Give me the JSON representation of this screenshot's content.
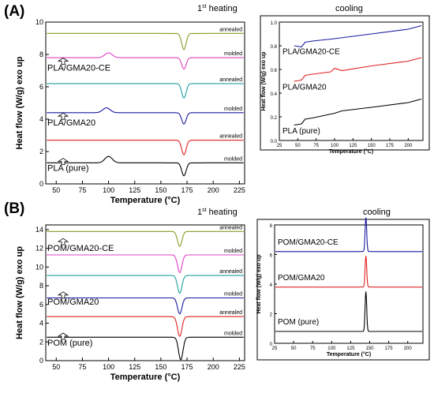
{
  "panels": [
    {
      "label": "(A)",
      "heating_title": "1",
      "heating_title_sup": "st",
      "heating_title_rest": " heating",
      "cooling_title": "cooling"
    },
    {
      "label": "(B)",
      "heating_title": "1",
      "heating_title_sup": "st",
      "heating_title_rest": " heating",
      "cooling_title": "cooling"
    }
  ],
  "chart_data": [
    {
      "type": "line",
      "panel": "A",
      "section": "1st heating",
      "xlabel": "Temperature (°C)",
      "ylabel": "Heat flow (W/g) exo up",
      "xlim": [
        40,
        230
      ],
      "ylim": [
        0,
        10
      ],
      "xticks": [
        50,
        75,
        100,
        125,
        150,
        175,
        200,
        225
      ],
      "yticks": [
        0,
        2,
        4,
        6,
        8,
        10
      ],
      "legend": "none",
      "sample_labels": [
        {
          "text": "PLA/GMA20-CE",
          "y": 7.0
        },
        {
          "text": "PLA/GMA20",
          "y": 3.6
        },
        {
          "text": "PLA (pure)",
          "y": 0.8
        }
      ],
      "series": [
        {
          "name": "annealed",
          "color": "#8a9a20",
          "baseline": 9.3,
          "events": [
            {
              "type": "peak",
              "x": 172,
              "depth": -1.0,
              "width": 3
            }
          ]
        },
        {
          "name": "molded",
          "color": "#e040c8",
          "baseline": 7.8,
          "events": [
            {
              "type": "peak",
              "x": 100,
              "depth": 0.3,
              "width": 5
            },
            {
              "type": "peak",
              "x": 172,
              "depth": -0.7,
              "width": 3
            }
          ]
        },
        {
          "name": "annealed",
          "color": "#20a0a0",
          "baseline": 6.2,
          "events": [
            {
              "type": "peak",
              "x": 172,
              "depth": -0.9,
              "width": 3
            }
          ]
        },
        {
          "name": "molded",
          "color": "#1a1aa0",
          "baseline": 4.4,
          "events": [
            {
              "type": "peak",
              "x": 98,
              "depth": 0.3,
              "width": 5
            },
            {
              "type": "peak",
              "x": 172,
              "depth": -0.7,
              "width": 3
            }
          ]
        },
        {
          "name": "annealed",
          "color": "#e02020",
          "baseline": 2.7,
          "events": [
            {
              "type": "peak",
              "x": 172,
              "depth": -0.9,
              "width": 3
            }
          ]
        },
        {
          "name": "molded",
          "color": "#000000",
          "baseline": 1.3,
          "events": [
            {
              "type": "peak",
              "x": 100,
              "depth": 0.4,
              "width": 5
            },
            {
              "type": "peak",
              "x": 172,
              "depth": -0.8,
              "width": 3
            }
          ]
        }
      ],
      "state_labels": [
        "annealed",
        "molded",
        "annealed",
        "molded",
        "annealed",
        "molded"
      ]
    },
    {
      "type": "line",
      "panel": "A",
      "section": "cooling",
      "xlabel": "Temperature (°C)",
      "ylabel": "Heat flow (W/g) exo up",
      "xlim": [
        25,
        220
      ],
      "ylim": [
        0.0,
        1.0
      ],
      "xticks": [
        25,
        50,
        75,
        100,
        125,
        150,
        175,
        200
      ],
      "yticks": [
        0.0,
        0.2,
        0.4,
        0.6,
        0.8,
        1.0
      ],
      "legend": "none",
      "series": [
        {
          "name": "PLA/GMA20-CE",
          "color": "#1a1aa0",
          "points": [
            [
              45,
              0.8
            ],
            [
              55,
              0.79
            ],
            [
              60,
              0.83
            ],
            [
              70,
              0.84
            ],
            [
              100,
              0.86
            ],
            [
              150,
              0.9
            ],
            [
              200,
              0.94
            ],
            [
              218,
              0.97
            ]
          ]
        },
        {
          "name": "PLA/GMA20",
          "color": "#e02020",
          "points": [
            [
              45,
              0.5
            ],
            [
              55,
              0.51
            ],
            [
              60,
              0.55
            ],
            [
              70,
              0.56
            ],
            [
              95,
              0.58
            ],
            [
              100,
              0.61
            ],
            [
              110,
              0.59
            ],
            [
              150,
              0.63
            ],
            [
              200,
              0.67
            ],
            [
              218,
              0.7
            ]
          ]
        },
        {
          "name": "PLA (pure)",
          "color": "#000000",
          "points": [
            [
              45,
              0.13
            ],
            [
              55,
              0.14
            ],
            [
              60,
              0.18
            ],
            [
              70,
              0.19
            ],
            [
              100,
              0.23
            ],
            [
              110,
              0.25
            ],
            [
              150,
              0.28
            ],
            [
              200,
              0.32
            ],
            [
              218,
              0.35
            ]
          ]
        }
      ]
    },
    {
      "type": "line",
      "panel": "B",
      "section": "1st heating",
      "xlabel": "Temperature (°C)",
      "ylabel": "Heat flow (W/g) exo up",
      "xlim": [
        40,
        230
      ],
      "ylim": [
        0,
        14.5
      ],
      "xticks": [
        50,
        75,
        100,
        125,
        150,
        175,
        200,
        225
      ],
      "yticks": [
        0,
        2,
        4,
        6,
        8,
        10,
        12,
        14
      ],
      "legend": "none",
      "sample_labels": [
        {
          "text": "POM/GMA20-CE",
          "y": 11.7
        },
        {
          "text": "POM/GMA20",
          "y": 6.0
        },
        {
          "text": "POM (pure)",
          "y": 1.6
        }
      ],
      "series": [
        {
          "name": "annealed",
          "color": "#8a9a20",
          "baseline": 13.8,
          "events": [
            {
              "type": "peak",
              "x": 168,
              "depth": -1.6,
              "width": 3
            }
          ]
        },
        {
          "name": "molded",
          "color": "#e040c8",
          "baseline": 11.3,
          "events": [
            {
              "type": "peak",
              "x": 168,
              "depth": -1.9,
              "width": 3
            }
          ]
        },
        {
          "name": "annealed",
          "color": "#20a0a0",
          "baseline": 9.1,
          "events": [
            {
              "type": "peak",
              "x": 168,
              "depth": -1.9,
              "width": 3
            }
          ]
        },
        {
          "name": "molded",
          "color": "#1a1aa0",
          "baseline": 6.7,
          "events": [
            {
              "type": "peak",
              "x": 168,
              "depth": -1.7,
              "width": 3
            }
          ]
        },
        {
          "name": "annealed",
          "color": "#e02020",
          "baseline": 4.7,
          "events": [
            {
              "type": "peak",
              "x": 168,
              "depth": -2.1,
              "width": 3
            }
          ]
        },
        {
          "name": "molded",
          "color": "#000000",
          "baseline": 2.5,
          "events": [
            {
              "type": "peak",
              "x": 169,
              "depth": -2.4,
              "width": 3
            }
          ]
        }
      ],
      "state_labels": [
        "annealed",
        "molded",
        "annealed",
        "molded",
        "annealed",
        "molded"
      ]
    },
    {
      "type": "line",
      "panel": "B",
      "section": "cooling",
      "xlabel": "Temperature (°C)",
      "ylabel": "Heat flow (W/g) exo up",
      "xlim": [
        25,
        220
      ],
      "ylim": [
        0,
        8
      ],
      "xticks": [
        25,
        50,
        75,
        100,
        125,
        150,
        175,
        200
      ],
      "yticks": [
        0,
        2,
        4,
        6,
        8
      ],
      "legend": "none",
      "series": [
        {
          "name": "POM/GMA20-CE",
          "color": "#1a1aa0",
          "baseline": 6.2,
          "events": [
            {
              "type": "peak",
              "x": 145,
              "depth": 2.3,
              "width": 1.5
            }
          ]
        },
        {
          "name": "POM/GMA20",
          "color": "#e02020",
          "baseline": 3.8,
          "events": [
            {
              "type": "peak",
              "x": 145,
              "depth": 2.1,
              "width": 1.5
            }
          ]
        },
        {
          "name": "POM (pure)",
          "color": "#000000",
          "baseline": 0.8,
          "events": [
            {
              "type": "peak",
              "x": 145,
              "depth": 2.7,
              "width": 1.5
            }
          ]
        }
      ]
    }
  ]
}
